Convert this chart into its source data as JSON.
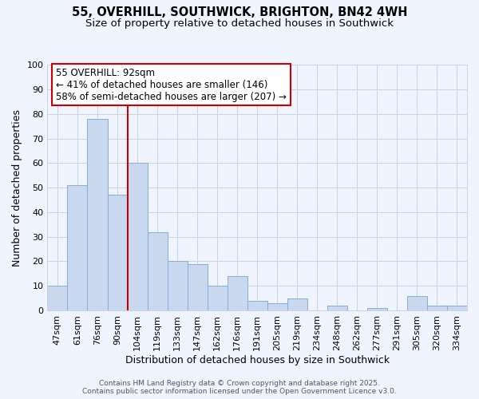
{
  "title_line1": "55, OVERHILL, SOUTHWICK, BRIGHTON, BN42 4WH",
  "title_line2": "Size of property relative to detached houses in Southwick",
  "xlabel": "Distribution of detached houses by size in Southwick",
  "ylabel": "Number of detached properties",
  "categories": [
    "47sqm",
    "61sqm",
    "76sqm",
    "90sqm",
    "104sqm",
    "119sqm",
    "133sqm",
    "147sqm",
    "162sqm",
    "176sqm",
    "191sqm",
    "205sqm",
    "219sqm",
    "234sqm",
    "248sqm",
    "262sqm",
    "277sqm",
    "291sqm",
    "305sqm",
    "320sqm",
    "334sqm"
  ],
  "values": [
    10,
    51,
    78,
    47,
    60,
    32,
    20,
    19,
    10,
    14,
    4,
    3,
    5,
    0,
    2,
    0,
    1,
    0,
    6,
    2,
    2
  ],
  "bar_color": "#c8d8ef",
  "bar_edge_color": "#88aad4",
  "background_color": "#f0f4ff",
  "grid_color": "#c8d0e8",
  "red_line_x": 3.5,
  "annotation_title": "55 OVERHILL: 92sqm",
  "annotation_line1": "← 41% of detached houses are smaller (146)",
  "annotation_line2": "58% of semi-detached houses are larger (207) →",
  "annotation_box_color": "#ffffff",
  "annotation_box_edge": "#cc0000",
  "vline_color": "#cc0000",
  "ylim": [
    0,
    100
  ],
  "yticks": [
    0,
    10,
    20,
    30,
    40,
    50,
    60,
    70,
    80,
    90,
    100
  ],
  "footer_text": "Contains HM Land Registry data © Crown copyright and database right 2025.\nContains public sector information licensed under the Open Government Licence v3.0.",
  "title_fontsize": 10.5,
  "subtitle_fontsize": 9.5,
  "axis_label_fontsize": 9,
  "tick_fontsize": 8,
  "annotation_fontsize": 8.5,
  "footer_fontsize": 6.5
}
